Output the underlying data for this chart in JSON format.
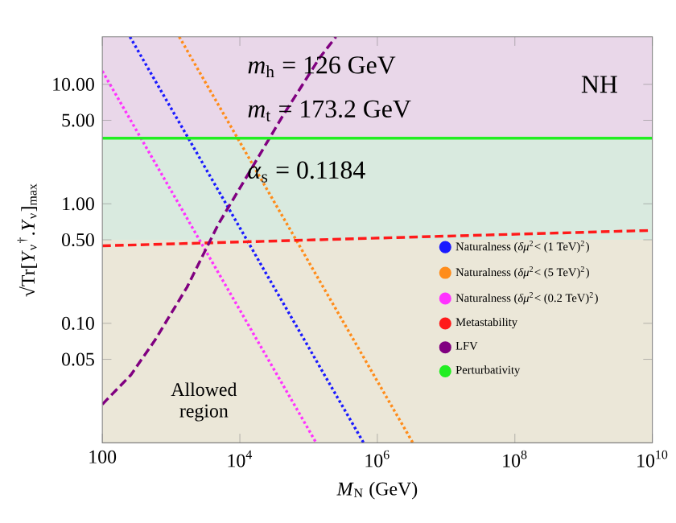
{
  "chart_data": {
    "type": "line",
    "xlabel": "*M*$_{N}$ (GeV)",
    "ylabel": "√Tr[*Y*$_{ν}$$^{†}$.*Y*$_{ν}$]$_{max}$",
    "log": "xy",
    "xlim": [
      100,
      10000000000
    ],
    "ylim": [
      0.01,
      25
    ],
    "xticks": [
      100,
      {
        "value": 10000,
        "label": "10$^{4}$"
      },
      {
        "value": 1000000,
        "label": "10$^{6}$"
      },
      {
        "value": 100000000,
        "label": "10$^{8}$"
      },
      {
        "value": 10000000000,
        "label": "10$^{10}$"
      }
    ],
    "yticks": [
      0.05,
      {
        "value": 0.1,
        "label": "0.10"
      },
      {
        "value": 0.5,
        "label": "0.50"
      },
      {
        "value": 1,
        "label": "1.00"
      },
      {
        "value": 5,
        "label": "5.00"
      },
      {
        "value": 10,
        "label": "10.00"
      }
    ],
    "bands": [
      {
        "axis": "y",
        "from": 3.54,
        "to": 25,
        "color": "#e9d7e9"
      },
      {
        "axis": "y",
        "from": 0.5,
        "to": 3.54,
        "color": "#d9eadf"
      },
      {
        "axis": "y",
        "from": 0.01,
        "to": 0.5,
        "color": "#ebe7d8"
      }
    ],
    "series": [
      {
        "name": "Naturalness (*δμ*$^{2}$< (1 TeV)$^{2}$)",
        "color": "#1a1aff",
        "line_style": "dotted",
        "x": [
          252,
          630000
        ],
        "values": [
          25,
          0.01
        ]
      },
      {
        "name": "Naturalness (*δμ*$^{2}$< (5 TeV)$^{2}$)",
        "color": "#ff8c1a",
        "line_style": "dotted",
        "x": [
          1312,
          3280000
        ],
        "values": [
          25,
          0.01
        ]
      },
      {
        "name": "Naturalness (*δμ*$^{2}$< (0.2 TeV)$^{2}$)",
        "color": "#ff33ff",
        "line_style": "dotted",
        "x": [
          100,
          129000
        ],
        "values": [
          12.9,
          0.01
        ]
      },
      {
        "name": "Metastability",
        "color": "#ff1a1a",
        "line_style": "dashed",
        "x": [
          100,
          10000000000
        ],
        "values": [
          0.445,
          0.6
        ]
      },
      {
        "name": "LFV",
        "color": "#800080",
        "line_style": "dashed",
        "x": [
          100,
          260,
          580,
          1700,
          4900,
          14300,
          41700,
          145000,
          250000
        ],
        "values": [
          0.021,
          0.037,
          0.072,
          0.2,
          0.68,
          1.91,
          5.4,
          16.7,
          25
        ]
      },
      {
        "name": "Perturbativity",
        "color": "#22ee22",
        "line_style": "solid",
        "x": [
          100,
          10000000000
        ],
        "values": [
          3.54,
          3.54
        ]
      }
    ],
    "legend": "right",
    "annotations": [
      "*m*$_{h}$ = 126 GeV",
      "*m*$_{t}$ = 173.2 GeV",
      "*α*$_{s}$ = 0.1184",
      "NH",
      "Allowed region"
    ]
  }
}
